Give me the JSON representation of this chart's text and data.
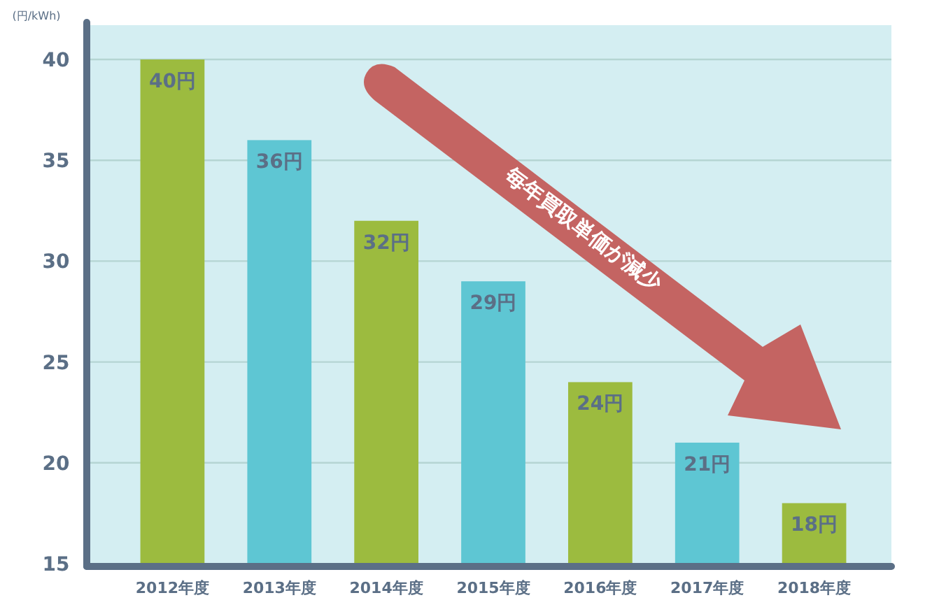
{
  "chart_data": {
    "type": "bar",
    "ylabel": "(円/kWh)",
    "categories": [
      "2012年度",
      "2013年度",
      "2014年度",
      "2015年度",
      "2016年度",
      "2017年度",
      "2018年度"
    ],
    "values": [
      40,
      36,
      32,
      29,
      24,
      21,
      18
    ],
    "colors": [
      "#9cbb3f",
      "#5ec6d3",
      "#9cbb3f",
      "#5ec6d3",
      "#9cbb3f",
      "#5ec6d3",
      "#9cbb3f"
    ],
    "value_labels": [
      "40円",
      "36円",
      "32円",
      "29円",
      "24円",
      "21円",
      "18円"
    ],
    "ylim": [
      15,
      41.7
    ],
    "yticks": [
      15,
      20,
      25,
      30,
      35,
      40
    ],
    "grid": "y",
    "annotations": [
      "毎年買取単価が減少"
    ]
  }
}
